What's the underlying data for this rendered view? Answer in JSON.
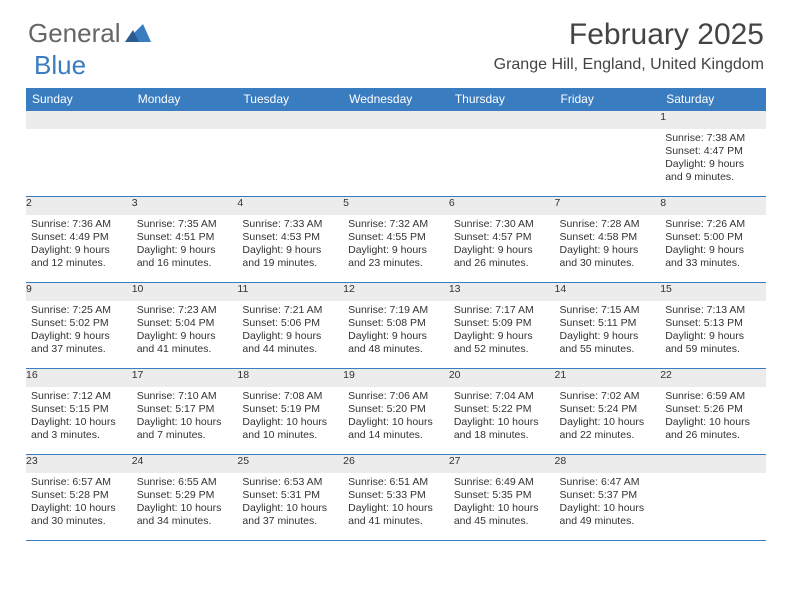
{
  "logo": {
    "text_general": "General",
    "text_blue": "Blue",
    "accent_color": "#3a7cc0"
  },
  "header": {
    "month_title": "February 2025",
    "location": "Grange Hill, England, United Kingdom"
  },
  "calendar": {
    "header_bg": "#3a7cc0",
    "header_fg": "#ffffff",
    "daynum_bg": "#ececec",
    "border_color": "#3a7cc0",
    "days_of_week": [
      "Sunday",
      "Monday",
      "Tuesday",
      "Wednesday",
      "Thursday",
      "Friday",
      "Saturday"
    ],
    "weeks": [
      [
        null,
        null,
        null,
        null,
        null,
        null,
        {
          "n": "1",
          "sunrise": "Sunrise: 7:38 AM",
          "sunset": "Sunset: 4:47 PM",
          "daylight1": "Daylight: 9 hours",
          "daylight2": "and 9 minutes."
        }
      ],
      [
        {
          "n": "2",
          "sunrise": "Sunrise: 7:36 AM",
          "sunset": "Sunset: 4:49 PM",
          "daylight1": "Daylight: 9 hours",
          "daylight2": "and 12 minutes."
        },
        {
          "n": "3",
          "sunrise": "Sunrise: 7:35 AM",
          "sunset": "Sunset: 4:51 PM",
          "daylight1": "Daylight: 9 hours",
          "daylight2": "and 16 minutes."
        },
        {
          "n": "4",
          "sunrise": "Sunrise: 7:33 AM",
          "sunset": "Sunset: 4:53 PM",
          "daylight1": "Daylight: 9 hours",
          "daylight2": "and 19 minutes."
        },
        {
          "n": "5",
          "sunrise": "Sunrise: 7:32 AM",
          "sunset": "Sunset: 4:55 PM",
          "daylight1": "Daylight: 9 hours",
          "daylight2": "and 23 minutes."
        },
        {
          "n": "6",
          "sunrise": "Sunrise: 7:30 AM",
          "sunset": "Sunset: 4:57 PM",
          "daylight1": "Daylight: 9 hours",
          "daylight2": "and 26 minutes."
        },
        {
          "n": "7",
          "sunrise": "Sunrise: 7:28 AM",
          "sunset": "Sunset: 4:58 PM",
          "daylight1": "Daylight: 9 hours",
          "daylight2": "and 30 minutes."
        },
        {
          "n": "8",
          "sunrise": "Sunrise: 7:26 AM",
          "sunset": "Sunset: 5:00 PM",
          "daylight1": "Daylight: 9 hours",
          "daylight2": "and 33 minutes."
        }
      ],
      [
        {
          "n": "9",
          "sunrise": "Sunrise: 7:25 AM",
          "sunset": "Sunset: 5:02 PM",
          "daylight1": "Daylight: 9 hours",
          "daylight2": "and 37 minutes."
        },
        {
          "n": "10",
          "sunrise": "Sunrise: 7:23 AM",
          "sunset": "Sunset: 5:04 PM",
          "daylight1": "Daylight: 9 hours",
          "daylight2": "and 41 minutes."
        },
        {
          "n": "11",
          "sunrise": "Sunrise: 7:21 AM",
          "sunset": "Sunset: 5:06 PM",
          "daylight1": "Daylight: 9 hours",
          "daylight2": "and 44 minutes."
        },
        {
          "n": "12",
          "sunrise": "Sunrise: 7:19 AM",
          "sunset": "Sunset: 5:08 PM",
          "daylight1": "Daylight: 9 hours",
          "daylight2": "and 48 minutes."
        },
        {
          "n": "13",
          "sunrise": "Sunrise: 7:17 AM",
          "sunset": "Sunset: 5:09 PM",
          "daylight1": "Daylight: 9 hours",
          "daylight2": "and 52 minutes."
        },
        {
          "n": "14",
          "sunrise": "Sunrise: 7:15 AM",
          "sunset": "Sunset: 5:11 PM",
          "daylight1": "Daylight: 9 hours",
          "daylight2": "and 55 minutes."
        },
        {
          "n": "15",
          "sunrise": "Sunrise: 7:13 AM",
          "sunset": "Sunset: 5:13 PM",
          "daylight1": "Daylight: 9 hours",
          "daylight2": "and 59 minutes."
        }
      ],
      [
        {
          "n": "16",
          "sunrise": "Sunrise: 7:12 AM",
          "sunset": "Sunset: 5:15 PM",
          "daylight1": "Daylight: 10 hours",
          "daylight2": "and 3 minutes."
        },
        {
          "n": "17",
          "sunrise": "Sunrise: 7:10 AM",
          "sunset": "Sunset: 5:17 PM",
          "daylight1": "Daylight: 10 hours",
          "daylight2": "and 7 minutes."
        },
        {
          "n": "18",
          "sunrise": "Sunrise: 7:08 AM",
          "sunset": "Sunset: 5:19 PM",
          "daylight1": "Daylight: 10 hours",
          "daylight2": "and 10 minutes."
        },
        {
          "n": "19",
          "sunrise": "Sunrise: 7:06 AM",
          "sunset": "Sunset: 5:20 PM",
          "daylight1": "Daylight: 10 hours",
          "daylight2": "and 14 minutes."
        },
        {
          "n": "20",
          "sunrise": "Sunrise: 7:04 AM",
          "sunset": "Sunset: 5:22 PM",
          "daylight1": "Daylight: 10 hours",
          "daylight2": "and 18 minutes."
        },
        {
          "n": "21",
          "sunrise": "Sunrise: 7:02 AM",
          "sunset": "Sunset: 5:24 PM",
          "daylight1": "Daylight: 10 hours",
          "daylight2": "and 22 minutes."
        },
        {
          "n": "22",
          "sunrise": "Sunrise: 6:59 AM",
          "sunset": "Sunset: 5:26 PM",
          "daylight1": "Daylight: 10 hours",
          "daylight2": "and 26 minutes."
        }
      ],
      [
        {
          "n": "23",
          "sunrise": "Sunrise: 6:57 AM",
          "sunset": "Sunset: 5:28 PM",
          "daylight1": "Daylight: 10 hours",
          "daylight2": "and 30 minutes."
        },
        {
          "n": "24",
          "sunrise": "Sunrise: 6:55 AM",
          "sunset": "Sunset: 5:29 PM",
          "daylight1": "Daylight: 10 hours",
          "daylight2": "and 34 minutes."
        },
        {
          "n": "25",
          "sunrise": "Sunrise: 6:53 AM",
          "sunset": "Sunset: 5:31 PM",
          "daylight1": "Daylight: 10 hours",
          "daylight2": "and 37 minutes."
        },
        {
          "n": "26",
          "sunrise": "Sunrise: 6:51 AM",
          "sunset": "Sunset: 5:33 PM",
          "daylight1": "Daylight: 10 hours",
          "daylight2": "and 41 minutes."
        },
        {
          "n": "27",
          "sunrise": "Sunrise: 6:49 AM",
          "sunset": "Sunset: 5:35 PM",
          "daylight1": "Daylight: 10 hours",
          "daylight2": "and 45 minutes."
        },
        {
          "n": "28",
          "sunrise": "Sunrise: 6:47 AM",
          "sunset": "Sunset: 5:37 PM",
          "daylight1": "Daylight: 10 hours",
          "daylight2": "and 49 minutes."
        },
        null
      ]
    ]
  }
}
